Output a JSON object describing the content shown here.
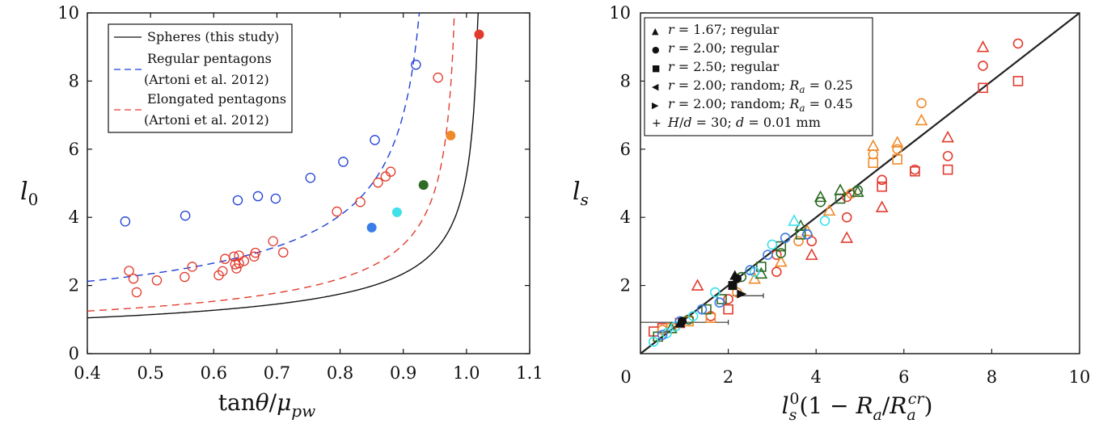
{
  "colors": {
    "blue": "#1f3fd6",
    "red": "#e23b2e",
    "black": "#111111",
    "orange": "#ef8a2a",
    "green": "#2e6b26",
    "cyan": "#3ee0ea",
    "mid_blue": "#3a7de8"
  },
  "chart_data": [
    {
      "type": "scatter",
      "panel": "left",
      "xlabel": "tanθ/μ_pw",
      "ylabel": "l_0",
      "xlim": [
        0.4,
        1.1
      ],
      "ylim": [
        0,
        10
      ],
      "x_ticks": [
        "0.4",
        "0.5",
        "0.6",
        "0.7",
        "0.8",
        "0.9",
        "1.0",
        "1.1"
      ],
      "y_ticks": [
        "0",
        "2",
        "4",
        "6",
        "8",
        "10"
      ],
      "legend_position": "top-left",
      "legend": [
        {
          "label": "Spheres (this study)",
          "style": "solid",
          "color": "#111111"
        },
        {
          "label": "Regular pentagons",
          "label2": "(Artoni et al. 2012)",
          "style": "dashed",
          "color": "#1f3fd6"
        },
        {
          "label": "Elongated pentagons",
          "label2": "(Artoni et al. 2012)",
          "style": "dashed",
          "color": "#e23b2e"
        }
      ],
      "curves": [
        {
          "name": "Spheres (this study)",
          "color": "#111111",
          "dash": false,
          "a": 1.05,
          "x_asym": 1.025,
          "x_start": 0.4
        },
        {
          "name": "Regular pentagons",
          "color": "#1f3fd6",
          "dash": true,
          "a": 2.12,
          "x_asym": 0.95,
          "x_start": 0.4
        },
        {
          "name": "Elongated pentagons",
          "color": "#e23b2e",
          "dash": true,
          "a": 1.25,
          "x_asym": 0.99,
          "x_start": 0.4
        }
      ],
      "series": [
        {
          "name": "Regular pentagons (data)",
          "marker": "open-circle",
          "color": "#1f3fd6",
          "points": [
            [
              0.46,
              3.88
            ],
            [
              0.555,
              4.05
            ],
            [
              0.638,
              4.5
            ],
            [
              0.67,
              4.62
            ],
            [
              0.698,
              4.55
            ],
            [
              0.753,
              5.16
            ],
            [
              0.805,
              5.63
            ],
            [
              0.855,
              6.27
            ],
            [
              0.92,
              8.48
            ]
          ]
        },
        {
          "name": "Elongated pentagons (data)",
          "marker": "open-circle",
          "color": "#e23b2e",
          "points": [
            [
              0.466,
              2.43
            ],
            [
              0.473,
              2.2
            ],
            [
              0.478,
              1.8
            ],
            [
              0.51,
              2.15
            ],
            [
              0.554,
              2.25
            ],
            [
              0.566,
              2.55
            ],
            [
              0.608,
              2.3
            ],
            [
              0.614,
              2.42
            ],
            [
              0.618,
              2.78
            ],
            [
              0.632,
              2.85
            ],
            [
              0.634,
              2.62
            ],
            [
              0.636,
              2.5
            ],
            [
              0.64,
              2.65
            ],
            [
              0.64,
              2.88
            ],
            [
              0.648,
              2.72
            ],
            [
              0.664,
              2.85
            ],
            [
              0.666,
              2.96
            ],
            [
              0.694,
              3.3
            ],
            [
              0.71,
              2.97
            ],
            [
              0.795,
              4.17
            ],
            [
              0.832,
              4.45
            ],
            [
              0.86,
              5.02
            ],
            [
              0.872,
              5.2
            ],
            [
              0.88,
              5.34
            ],
            [
              0.955,
              8.1
            ]
          ]
        },
        {
          "name": "Spheres (filled)",
          "marker": "filled-circle",
          "points": [
            [
              0.85,
              3.7,
              "#3a7de8"
            ],
            [
              0.89,
              4.15,
              "#3ee0ea"
            ],
            [
              0.932,
              4.95,
              "#2e6b26"
            ],
            [
              0.975,
              6.4,
              "#ef8a2a"
            ],
            [
              1.02,
              9.37,
              "#e23b2e"
            ]
          ]
        }
      ]
    },
    {
      "type": "scatter",
      "panel": "right",
      "xlabel": "l_s^0(1 − R_a/R_a^cr)",
      "ylabel": "l_s",
      "xlim": [
        0,
        10
      ],
      "ylim": [
        0,
        10
      ],
      "x_ticks": [
        "0",
        "2",
        "4",
        "6",
        "8",
        "10"
      ],
      "y_ticks": [
        "2",
        "4",
        "6",
        "8",
        "10"
      ],
      "legend_position": "top-left",
      "legend": [
        {
          "symbol": "▲",
          "parts": [
            "r",
            " = 1.67; regular"
          ]
        },
        {
          "symbol": "●",
          "parts": [
            "r",
            " = 2.00; regular"
          ]
        },
        {
          "symbol": "■",
          "parts": [
            "r",
            " = 2.50; regular"
          ]
        },
        {
          "symbol": "◀",
          "parts": [
            "r",
            " = 2.00; random; ",
            "R",
            "a",
            " = 0.25"
          ]
        },
        {
          "symbol": "▶",
          "parts": [
            "r",
            " = 2.00; random; ",
            "R",
            "a",
            " = 0.45"
          ]
        },
        {
          "symbol": "+",
          "parts": [
            "H",
            "/",
            "d",
            " = 30; ",
            "d",
            " = 0.01 mm"
          ]
        }
      ],
      "reference_line": {
        "label": "y = x",
        "from": [
          0,
          0
        ],
        "to": [
          10,
          10
        ]
      },
      "series": [
        {
          "name": "red open markers",
          "color": "#e23b2e",
          "points": [
            [
              7.8,
              9.0,
              "t"
            ],
            [
              8.6,
              9.1,
              "c"
            ],
            [
              7.8,
              8.45,
              "c"
            ],
            [
              8.6,
              8.0,
              "s"
            ],
            [
              7.8,
              7.8,
              "s"
            ],
            [
              7.0,
              6.35,
              "t"
            ],
            [
              7.0,
              5.8,
              "c"
            ],
            [
              7.0,
              5.4,
              "s"
            ],
            [
              6.25,
              5.4,
              "c"
            ],
            [
              6.25,
              5.35,
              "s"
            ],
            [
              5.5,
              5.1,
              "c"
            ],
            [
              5.5,
              4.9,
              "s"
            ],
            [
              5.5,
              4.3,
              "t"
            ],
            [
              4.7,
              4.6,
              "c"
            ],
            [
              4.7,
              4.0,
              "c"
            ],
            [
              4.7,
              3.4,
              "t"
            ],
            [
              3.9,
              3.3,
              "c"
            ],
            [
              3.9,
              2.9,
              "t"
            ],
            [
              3.1,
              2.9,
              "c"
            ],
            [
              3.1,
              2.4,
              "c"
            ],
            [
              1.3,
              2.0,
              "t"
            ],
            [
              2.0,
              1.6,
              "c"
            ],
            [
              2.0,
              1.3,
              "s"
            ],
            [
              1.6,
              1.1,
              "c"
            ],
            [
              0.9,
              0.9,
              "s"
            ],
            [
              0.5,
              0.75,
              "s"
            ],
            [
              0.3,
              0.65,
              "s"
            ]
          ]
        },
        {
          "name": "orange open markers",
          "color": "#ef8a2a",
          "points": [
            [
              6.4,
              7.35,
              "c"
            ],
            [
              6.4,
              6.85,
              "t"
            ],
            [
              5.85,
              6.2,
              "t"
            ],
            [
              5.85,
              6.0,
              "c"
            ],
            [
              5.85,
              5.7,
              "s"
            ],
            [
              5.3,
              6.1,
              "t"
            ],
            [
              5.3,
              5.85,
              "c"
            ],
            [
              5.3,
              5.6,
              "s"
            ],
            [
              4.8,
              4.7,
              "c"
            ],
            [
              4.3,
              4.2,
              "t"
            ],
            [
              3.8,
              3.6,
              "t"
            ],
            [
              3.6,
              3.3,
              "c"
            ],
            [
              3.2,
              2.7,
              "t"
            ],
            [
              2.6,
              2.2,
              "t"
            ],
            [
              2.2,
              1.8,
              "c"
            ],
            [
              1.6,
              1.05,
              "s"
            ],
            [
              1.1,
              0.95,
              "s"
            ],
            [
              0.7,
              0.75,
              "s"
            ],
            [
              0.5,
              0.7,
              "c"
            ]
          ]
        },
        {
          "name": "green open markers",
          "color": "#2e6b26",
          "points": [
            [
              4.95,
              4.75,
              "t"
            ],
            [
              4.95,
              4.8,
              "c"
            ],
            [
              4.55,
              4.8,
              "t"
            ],
            [
              4.55,
              4.55,
              "s"
            ],
            [
              4.1,
              4.6,
              "t"
            ],
            [
              4.1,
              4.45,
              "c"
            ],
            [
              3.65,
              3.75,
              "t"
            ],
            [
              3.65,
              3.5,
              "s"
            ],
            [
              3.2,
              3.15,
              "s"
            ],
            [
              3.2,
              2.95,
              "c"
            ],
            [
              2.75,
              2.55,
              "s"
            ],
            [
              2.75,
              2.35,
              "t"
            ],
            [
              2.3,
              2.25,
              "c"
            ],
            [
              1.85,
              1.6,
              "s"
            ],
            [
              1.5,
              1.3,
              "s"
            ],
            [
              1.1,
              1.0,
              "c"
            ],
            [
              0.7,
              0.75,
              "t"
            ],
            [
              0.4,
              0.5,
              "s"
            ]
          ]
        },
        {
          "name": "cyan open markers",
          "color": "#3ee0ea",
          "points": [
            [
              4.2,
              3.9,
              "c"
            ],
            [
              3.5,
              3.9,
              "t"
            ],
            [
              3.0,
              3.2,
              "c"
            ],
            [
              2.6,
              2.4,
              "c"
            ],
            [
              1.7,
              1.8,
              "c"
            ],
            [
              1.2,
              1.1,
              "c"
            ],
            [
              0.8,
              0.8,
              "c"
            ],
            [
              0.6,
              0.6,
              "c"
            ],
            [
              0.3,
              0.35,
              "c"
            ]
          ]
        },
        {
          "name": "blue open markers",
          "color": "#3a7de8",
          "points": [
            [
              3.8,
              3.5,
              "c"
            ],
            [
              3.3,
              3.4,
              "c"
            ],
            [
              2.9,
              2.9,
              "c"
            ],
            [
              2.5,
              2.45,
              "c"
            ],
            [
              1.8,
              1.5,
              "c"
            ],
            [
              1.4,
              1.3,
              "c"
            ],
            [
              0.9,
              0.95,
              "c"
            ],
            [
              0.5,
              0.55,
              "c"
            ]
          ]
        },
        {
          "name": "black filled markers",
          "color": "#111111",
          "points": [
            [
              2.15,
              2.3,
              "T"
            ],
            [
              2.2,
              2.2,
              "C"
            ],
            [
              2.1,
              2.0,
              "S"
            ],
            [
              2.3,
              1.75,
              "R"
            ],
            [
              0.95,
              0.95,
              "C"
            ],
            [
              0.9,
              0.9,
              "T"
            ]
          ]
        }
      ],
      "error_bars": [
        {
          "y": 0.92,
          "x0": 0.0,
          "x1": 2.0
        },
        {
          "y": 1.7,
          "x0": 2.1,
          "x1": 2.8
        }
      ]
    }
  ]
}
